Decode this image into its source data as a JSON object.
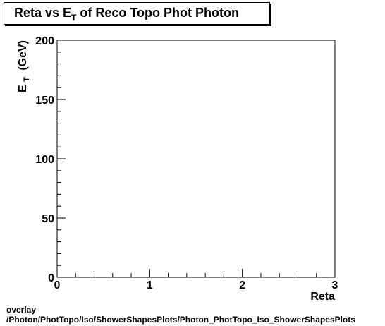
{
  "chart_data": {
    "type": "scatter",
    "title": "Reta vs E",
    "title_sub": "T",
    "title_tail": " of Reco Topo Phot Photon",
    "xlabel": "Reta",
    "ylabel": "E",
    "ylabel_sub": "T",
    "ylabel_unit": "(GeV)",
    "xlim": [
      0,
      3
    ],
    "ylim": [
      0,
      200
    ],
    "x_ticks": [
      "0",
      "1",
      "2",
      "3"
    ],
    "y_ticks": [
      "0",
      "50",
      "100",
      "150",
      "200"
    ],
    "x_tick_values": [
      0,
      1,
      2,
      3
    ],
    "y_tick_values": [
      0,
      50,
      100,
      150,
      200
    ],
    "grid": false,
    "points": []
  },
  "footer": {
    "line1": "overlay",
    "line2": "/Photon/PhotTopo/Iso/ShowerShapesPlots/Photon_PhotTopo_Iso_ShowerShapesPlots"
  }
}
